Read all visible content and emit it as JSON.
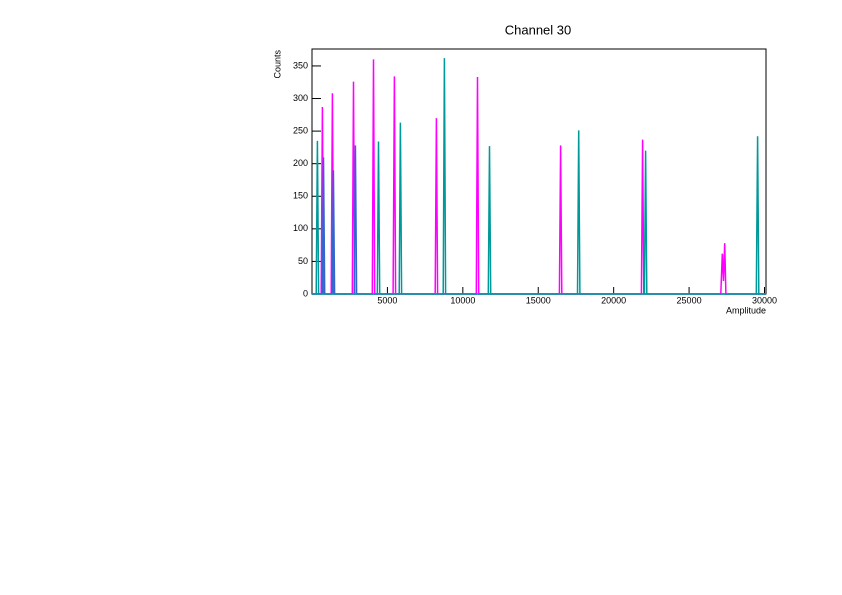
{
  "chart_data": {
    "type": "line",
    "title": "Channel 30",
    "x_label": "Amplitude",
    "y_label": "Counts",
    "xlim": [
      0,
      30100
    ],
    "ylim": [
      0,
      376
    ],
    "xticks": [
      5000,
      10000,
      15000,
      20000,
      25000,
      30000
    ],
    "yticks": [
      0,
      50,
      100,
      150,
      200,
      250,
      300,
      350
    ],
    "series": [
      {
        "color": "#ff00ff",
        "x": [
          0,
          610,
          690,
          770,
          1270,
          1350,
          1430,
          2670,
          2750,
          2830,
          4000,
          4080,
          4160,
          5380,
          5460,
          5540,
          8170,
          8250,
          8330,
          10890,
          10970,
          11050,
          16400,
          16480,
          16560,
          21840,
          21920,
          22000,
          27100,
          27200,
          27280,
          27360,
          27440,
          30100
        ],
        "values": [
          0,
          0,
          287,
          0,
          0,
          308,
          0,
          0,
          326,
          0,
          0,
          360,
          0,
          0,
          334,
          0,
          0,
          270,
          0,
          0,
          333,
          0,
          0,
          228,
          0,
          0,
          237,
          0,
          0,
          62,
          20,
          78,
          0,
          0
        ]
      },
      {
        "color": "#3366cc",
        "x": [
          0,
          680,
          760,
          840,
          1340,
          1420,
          1500,
          2800,
          2880,
          2960,
          30100
        ],
        "values": [
          0,
          0,
          210,
          0,
          0,
          190,
          0,
          0,
          228,
          0,
          0
        ]
      },
      {
        "color": "#009999",
        "x": [
          0,
          280,
          360,
          440,
          4330,
          4410,
          4490,
          5780,
          5860,
          5940,
          8700,
          8780,
          8860,
          11690,
          11770,
          11850,
          17600,
          17680,
          17760,
          22040,
          22120,
          22200,
          29460,
          29540,
          29620,
          30100
        ],
        "values": [
          0,
          0,
          235,
          0,
          0,
          234,
          0,
          0,
          263,
          0,
          0,
          362,
          0,
          0,
          227,
          0,
          0,
          251,
          0,
          0,
          220,
          0,
          0,
          242,
          0,
          0
        ]
      }
    ]
  }
}
